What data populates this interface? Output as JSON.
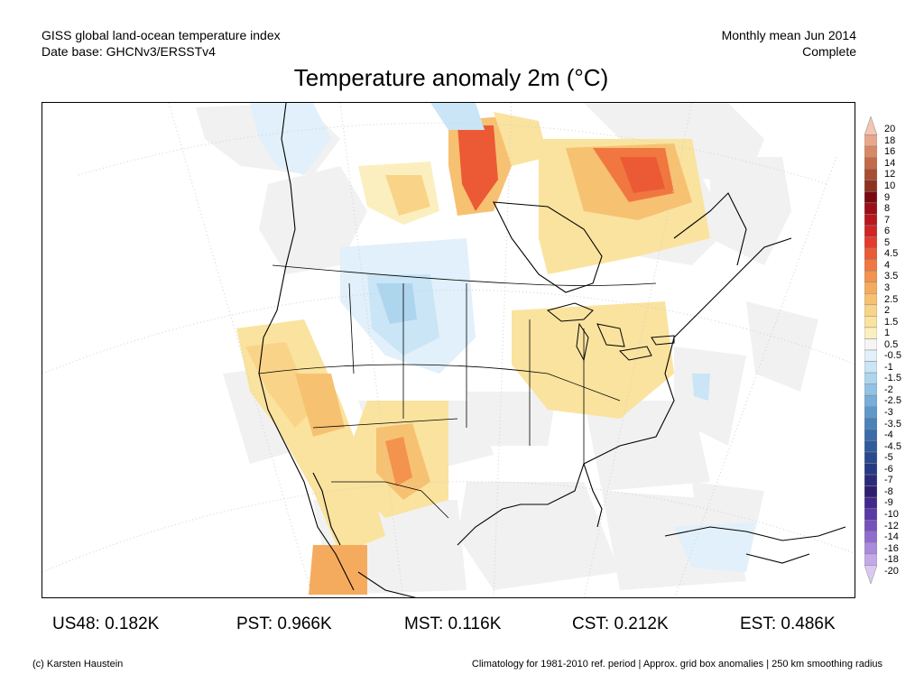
{
  "header": {
    "line1_left": "GISS global land-ocean temperature index",
    "line2_left": "Date base: GHCNv3/ERSSTv4",
    "line1_right": "Monthly mean Jun 2014",
    "line2_right": "Complete"
  },
  "title": "Temperature anomaly 2m (°C)",
  "colorbar": {
    "labels": [
      "20",
      "18",
      "16",
      "14",
      "12",
      "10",
      "9",
      "8",
      "7",
      "6",
      "5",
      "4.5",
      "4",
      "3.5",
      "3",
      "2.5",
      "2",
      "1.5",
      "1",
      "0.5",
      "-0.5",
      "-1",
      "-1.5",
      "-2",
      "-2.5",
      "-3",
      "-3.5",
      "-4",
      "-4.5",
      "-5",
      "-6",
      "-7",
      "-8",
      "-9",
      "-10",
      "-12",
      "-14",
      "-16",
      "-18",
      "-20"
    ],
    "colors": [
      "#f2c6b1",
      "#e8a78c",
      "#d98865",
      "#c36a48",
      "#a94d33",
      "#8e3322",
      "#7a0a12",
      "#9b0f18",
      "#b8171e",
      "#d02425",
      "#e43b2c",
      "#ec5a35",
      "#f07740",
      "#f3934e",
      "#f5ab5e",
      "#f7c172",
      "#f9d488",
      "#fae39e",
      "#fbefbf",
      "#f5f5f5",
      "#e1f0fa",
      "#c9e5f6",
      "#aed5ee",
      "#92c2e4",
      "#78aed8",
      "#5f98c9",
      "#4a82b9",
      "#3a6daa",
      "#305b9c",
      "#2a4a8f",
      "#273a82",
      "#2a2c79",
      "#2f1f70",
      "#43288c",
      "#5a3aa6",
      "#7552bb",
      "#8f6cce",
      "#aa8adc",
      "#c4a9e8",
      "#dbc8f2"
    ]
  },
  "stats": [
    {
      "label": "US48: 0.182K"
    },
    {
      "label": "PST: 0.966K"
    },
    {
      "label": "MST: 0.116K"
    },
    {
      "label": "CST: 0.212K"
    },
    {
      "label": "EST: 0.486K"
    }
  ],
  "footer": {
    "left": "(c) Karsten Haustein",
    "right": "Climatology for 1981-2010 ref. period | Approx. grid box anomalies | 250 km smoothing radius"
  }
}
